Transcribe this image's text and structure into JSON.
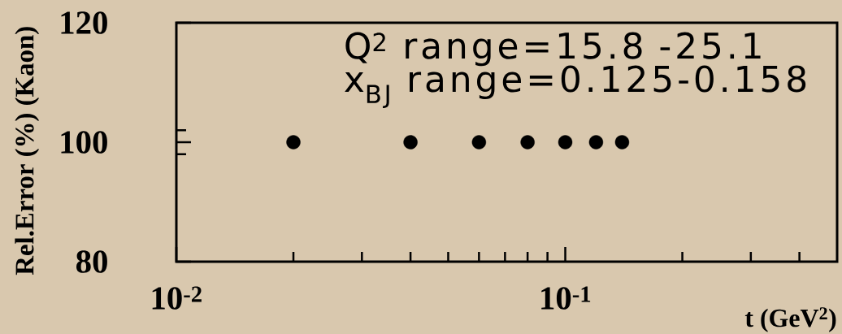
{
  "chart_data": {
    "type": "scatter",
    "xlabel": "t (GeV$^{2}$)",
    "ylabel": "Rel.Error (%) (Kaon)",
    "annotations": [
      "Q$^{2}$ range=15.8 -25.1",
      "x$_{BJ}$ range=0.125-0.158"
    ],
    "x": [
      0.02,
      0.04,
      0.06,
      0.08,
      0.1,
      0.12,
      0.14
    ],
    "values": [
      100,
      100,
      100,
      100,
      100,
      100,
      100
    ],
    "color": "#000000",
    "marker": "circle",
    "log": "x",
    "xlim": [
      0.01,
      0.5
    ],
    "ylim": [
      80,
      120
    ],
    "xticks": [
      {
        "value": 0.01,
        "label": "10$^{-2}$"
      },
      {
        "value": 0.02,
        "label": null
      },
      {
        "value": 0.03,
        "label": null
      },
      {
        "value": 0.04,
        "label": null
      },
      {
        "value": 0.05,
        "label": null
      },
      {
        "value": 0.06,
        "label": null
      },
      {
        "value": 0.07,
        "label": null
      },
      {
        "value": 0.08,
        "label": null
      },
      {
        "value": 0.09,
        "label": null
      },
      {
        "value": 0.1,
        "label": "10$^{-1}$"
      },
      {
        "value": 0.2,
        "label": null
      },
      {
        "value": 0.3,
        "label": null
      },
      {
        "value": 0.4,
        "label": null
      }
    ],
    "yticks": [
      80,
      {
        "value": 98,
        "label": null
      },
      100,
      {
        "value": 102,
        "label": null
      },
      120
    ]
  }
}
